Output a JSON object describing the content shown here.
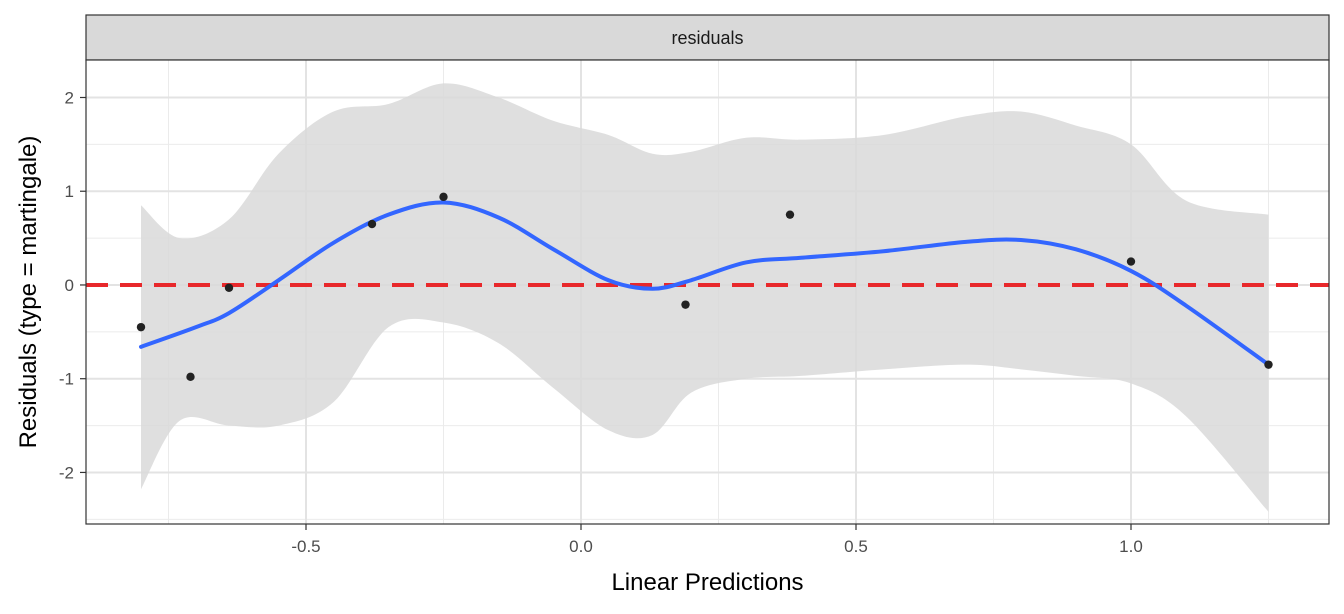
{
  "chart_data": {
    "type": "scatter",
    "facet_label": "residuals",
    "xlabel": "Linear Predictions",
    "ylabel": "Residuals (type = martingale)",
    "xlim": [
      -0.9,
      1.36
    ],
    "ylim": [
      -2.55,
      2.4
    ],
    "x_ticks": [
      -0.5,
      0.0,
      0.5,
      1.0
    ],
    "x_tick_labels": [
      "-0.5",
      "0.0",
      "0.5",
      "1.0"
    ],
    "y_ticks": [
      -2,
      -1,
      0,
      1,
      2
    ],
    "y_tick_labels": [
      "-2",
      "-1",
      "0",
      "1",
      "2"
    ],
    "grid": true,
    "reference_line": {
      "y": 0,
      "style": "dashed",
      "color": "#e8282b"
    },
    "points": [
      {
        "x": -0.8,
        "y": -0.45
      },
      {
        "x": -0.71,
        "y": -0.98
      },
      {
        "x": -0.64,
        "y": -0.03
      },
      {
        "x": -0.38,
        "y": 0.65
      },
      {
        "x": -0.25,
        "y": 0.94
      },
      {
        "x": 0.19,
        "y": -0.21
      },
      {
        "x": 0.38,
        "y": 0.75
      },
      {
        "x": 1.0,
        "y": 0.25
      },
      {
        "x": 1.25,
        "y": -0.85
      }
    ],
    "smooth_line": {
      "color": "#3366ff",
      "x": [
        -0.8,
        -0.7,
        -0.64,
        -0.55,
        -0.45,
        -0.35,
        -0.25,
        -0.15,
        -0.05,
        0.05,
        0.13,
        0.2,
        0.3,
        0.4,
        0.55,
        0.7,
        0.8,
        0.9,
        1.0,
        1.1,
        1.25
      ],
      "y": [
        -0.66,
        -0.45,
        -0.3,
        0.05,
        0.45,
        0.75,
        0.88,
        0.72,
        0.38,
        0.05,
        -0.04,
        0.05,
        0.24,
        0.29,
        0.36,
        0.46,
        0.48,
        0.38,
        0.15,
        -0.22,
        -0.85
      ]
    },
    "confidence_band": {
      "color": "#d9d9d9",
      "x": [
        -0.8,
        -0.73,
        -0.64,
        -0.55,
        -0.45,
        -0.35,
        -0.25,
        -0.15,
        -0.05,
        0.05,
        0.13,
        0.2,
        0.3,
        0.4,
        0.55,
        0.7,
        0.8,
        0.9,
        1.0,
        1.1,
        1.25
      ],
      "upper": [
        0.85,
        0.5,
        0.7,
        1.4,
        1.85,
        1.93,
        2.15,
        2.0,
        1.75,
        1.6,
        1.4,
        1.42,
        1.57,
        1.55,
        1.6,
        1.8,
        1.85,
        1.7,
        1.5,
        0.9,
        0.75
      ],
      "lower": [
        -2.18,
        -1.45,
        -1.5,
        -1.5,
        -1.25,
        -0.45,
        -0.4,
        -0.62,
        -1.1,
        -1.55,
        -1.6,
        -1.15,
        -1.0,
        -0.97,
        -0.9,
        -0.85,
        -0.9,
        -0.97,
        -1.05,
        -1.4,
        -2.42
      ]
    }
  }
}
